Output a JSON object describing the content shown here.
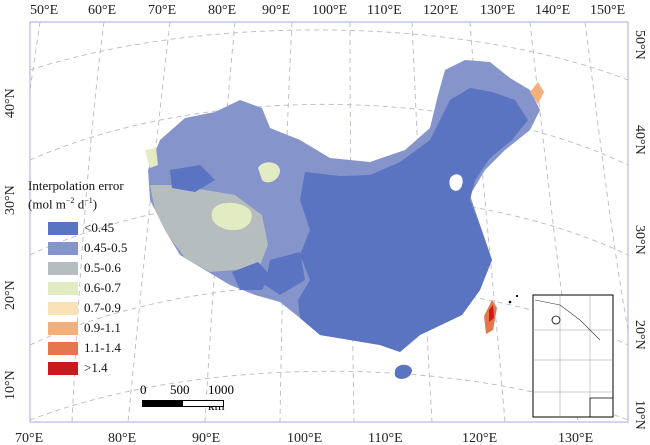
{
  "top_labels": [
    "50°E",
    "60°E",
    "70°E",
    "80°E",
    "90°E",
    "100°E",
    "110°E",
    "120°E",
    "130°E",
    "140°E",
    "150°E"
  ],
  "bottom_labels": [
    "70°E",
    "80°E",
    "90°E",
    "100°E",
    "110°E",
    "120°E",
    "130°E"
  ],
  "left_labels": [
    "40°N",
    "30°N",
    "20°N",
    "10°N"
  ],
  "right_labels": [
    "50°N",
    "40°N",
    "30°N",
    "20°N",
    "10°N"
  ],
  "legend": {
    "title": "Interpolation error",
    "unit_prefix": "(mol m",
    "unit_sup1": "−2",
    "unit_mid": " d",
    "unit_sup2": "−1",
    "unit_suffix": ")",
    "items": [
      {
        "label": "<0.45",
        "color": "#5a74c1"
      },
      {
        "label": "0.45-0.5",
        "color": "#8595cb"
      },
      {
        "label": "0.5-0.6",
        "color": "#b6bdbf"
      },
      {
        "label": "0.6-0.7",
        "color": "#e3ebc3"
      },
      {
        "label": "0.7-0.9",
        "color": "#f9e3b6"
      },
      {
        "label": "0.9-1.1",
        "color": "#f4b07a"
      },
      {
        "label": "1.1-1.4",
        "color": "#e4774d"
      },
      {
        "label": ">1.4",
        "color": "#c81c1c"
      }
    ]
  },
  "scale_bar": {
    "t0": "0",
    "t1": "500",
    "t2": "1000 km"
  }
}
